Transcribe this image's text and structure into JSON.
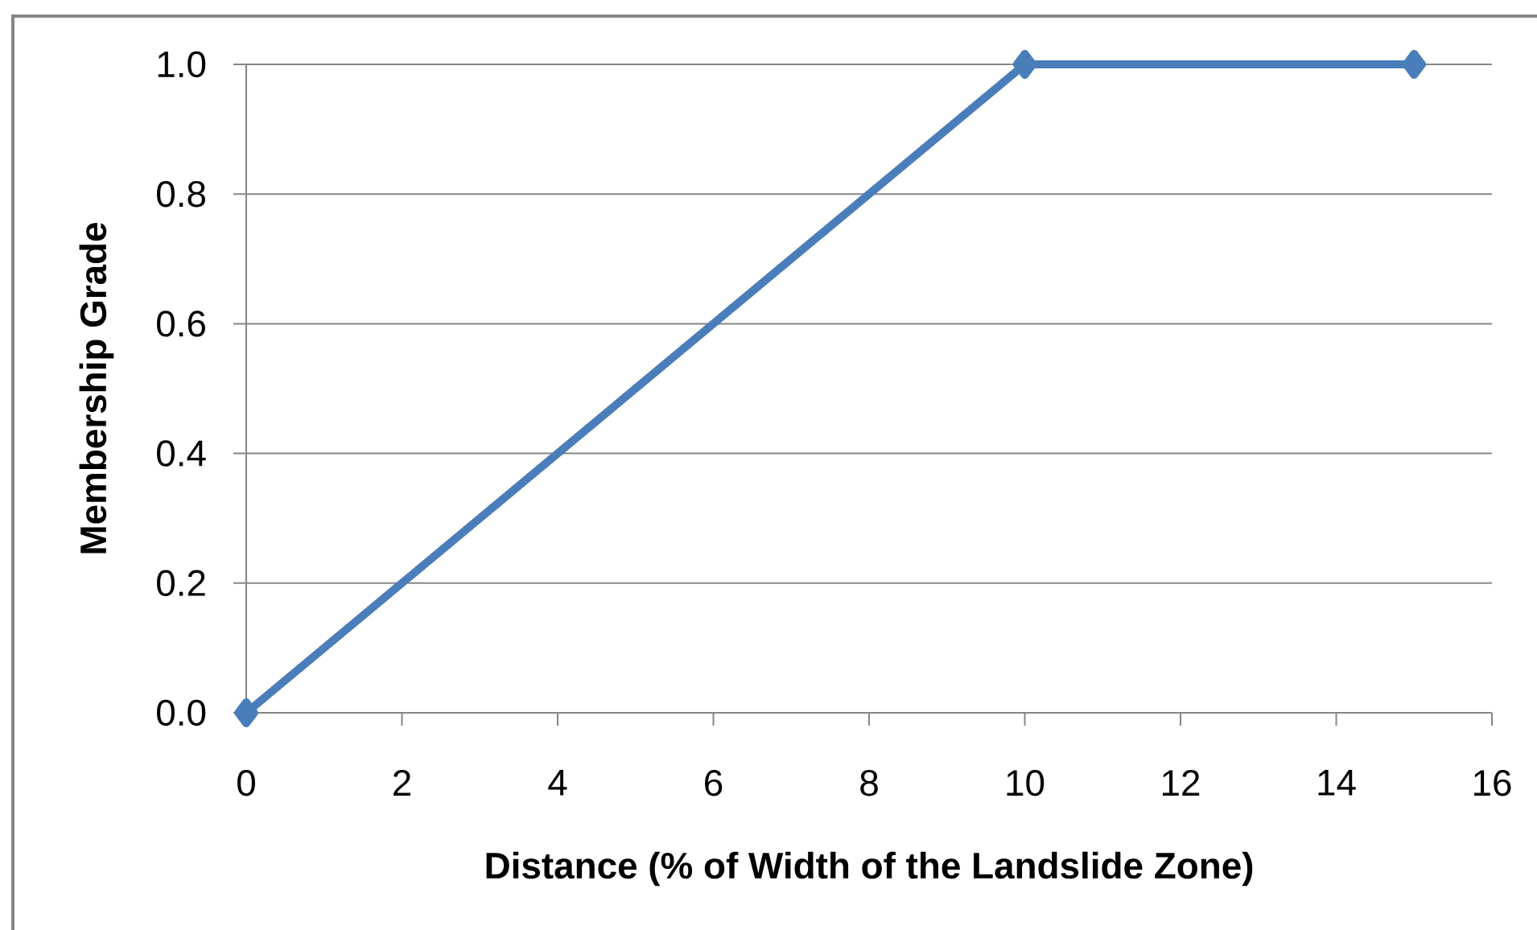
{
  "chart_data": {
    "type": "line",
    "xlabel": "Distance (% of Width of the Landslide Zone)",
    "ylabel": "Membership Grade",
    "x": [
      0,
      10,
      15
    ],
    "series": [
      {
        "color": "#4a7ebb",
        "values": [
          0,
          1,
          1
        ]
      }
    ],
    "xlim": [
      0,
      16
    ],
    "xticks": [
      0,
      2,
      4,
      6,
      8,
      10,
      12,
      14,
      16
    ],
    "ylim": [
      0,
      1
    ],
    "yticks": [
      {
        "value": 0,
        "label": "0.0"
      },
      {
        "value": 0.2,
        "label": "0.2"
      },
      {
        "value": 0.4,
        "label": "0.4"
      },
      {
        "value": 0.6,
        "label": "0.6"
      },
      {
        "value": 0.8,
        "label": "0.8"
      },
      {
        "value": 1,
        "label": "1.0"
      }
    ],
    "grid": "y",
    "marker": "diamond",
    "line_style": "solid"
  }
}
